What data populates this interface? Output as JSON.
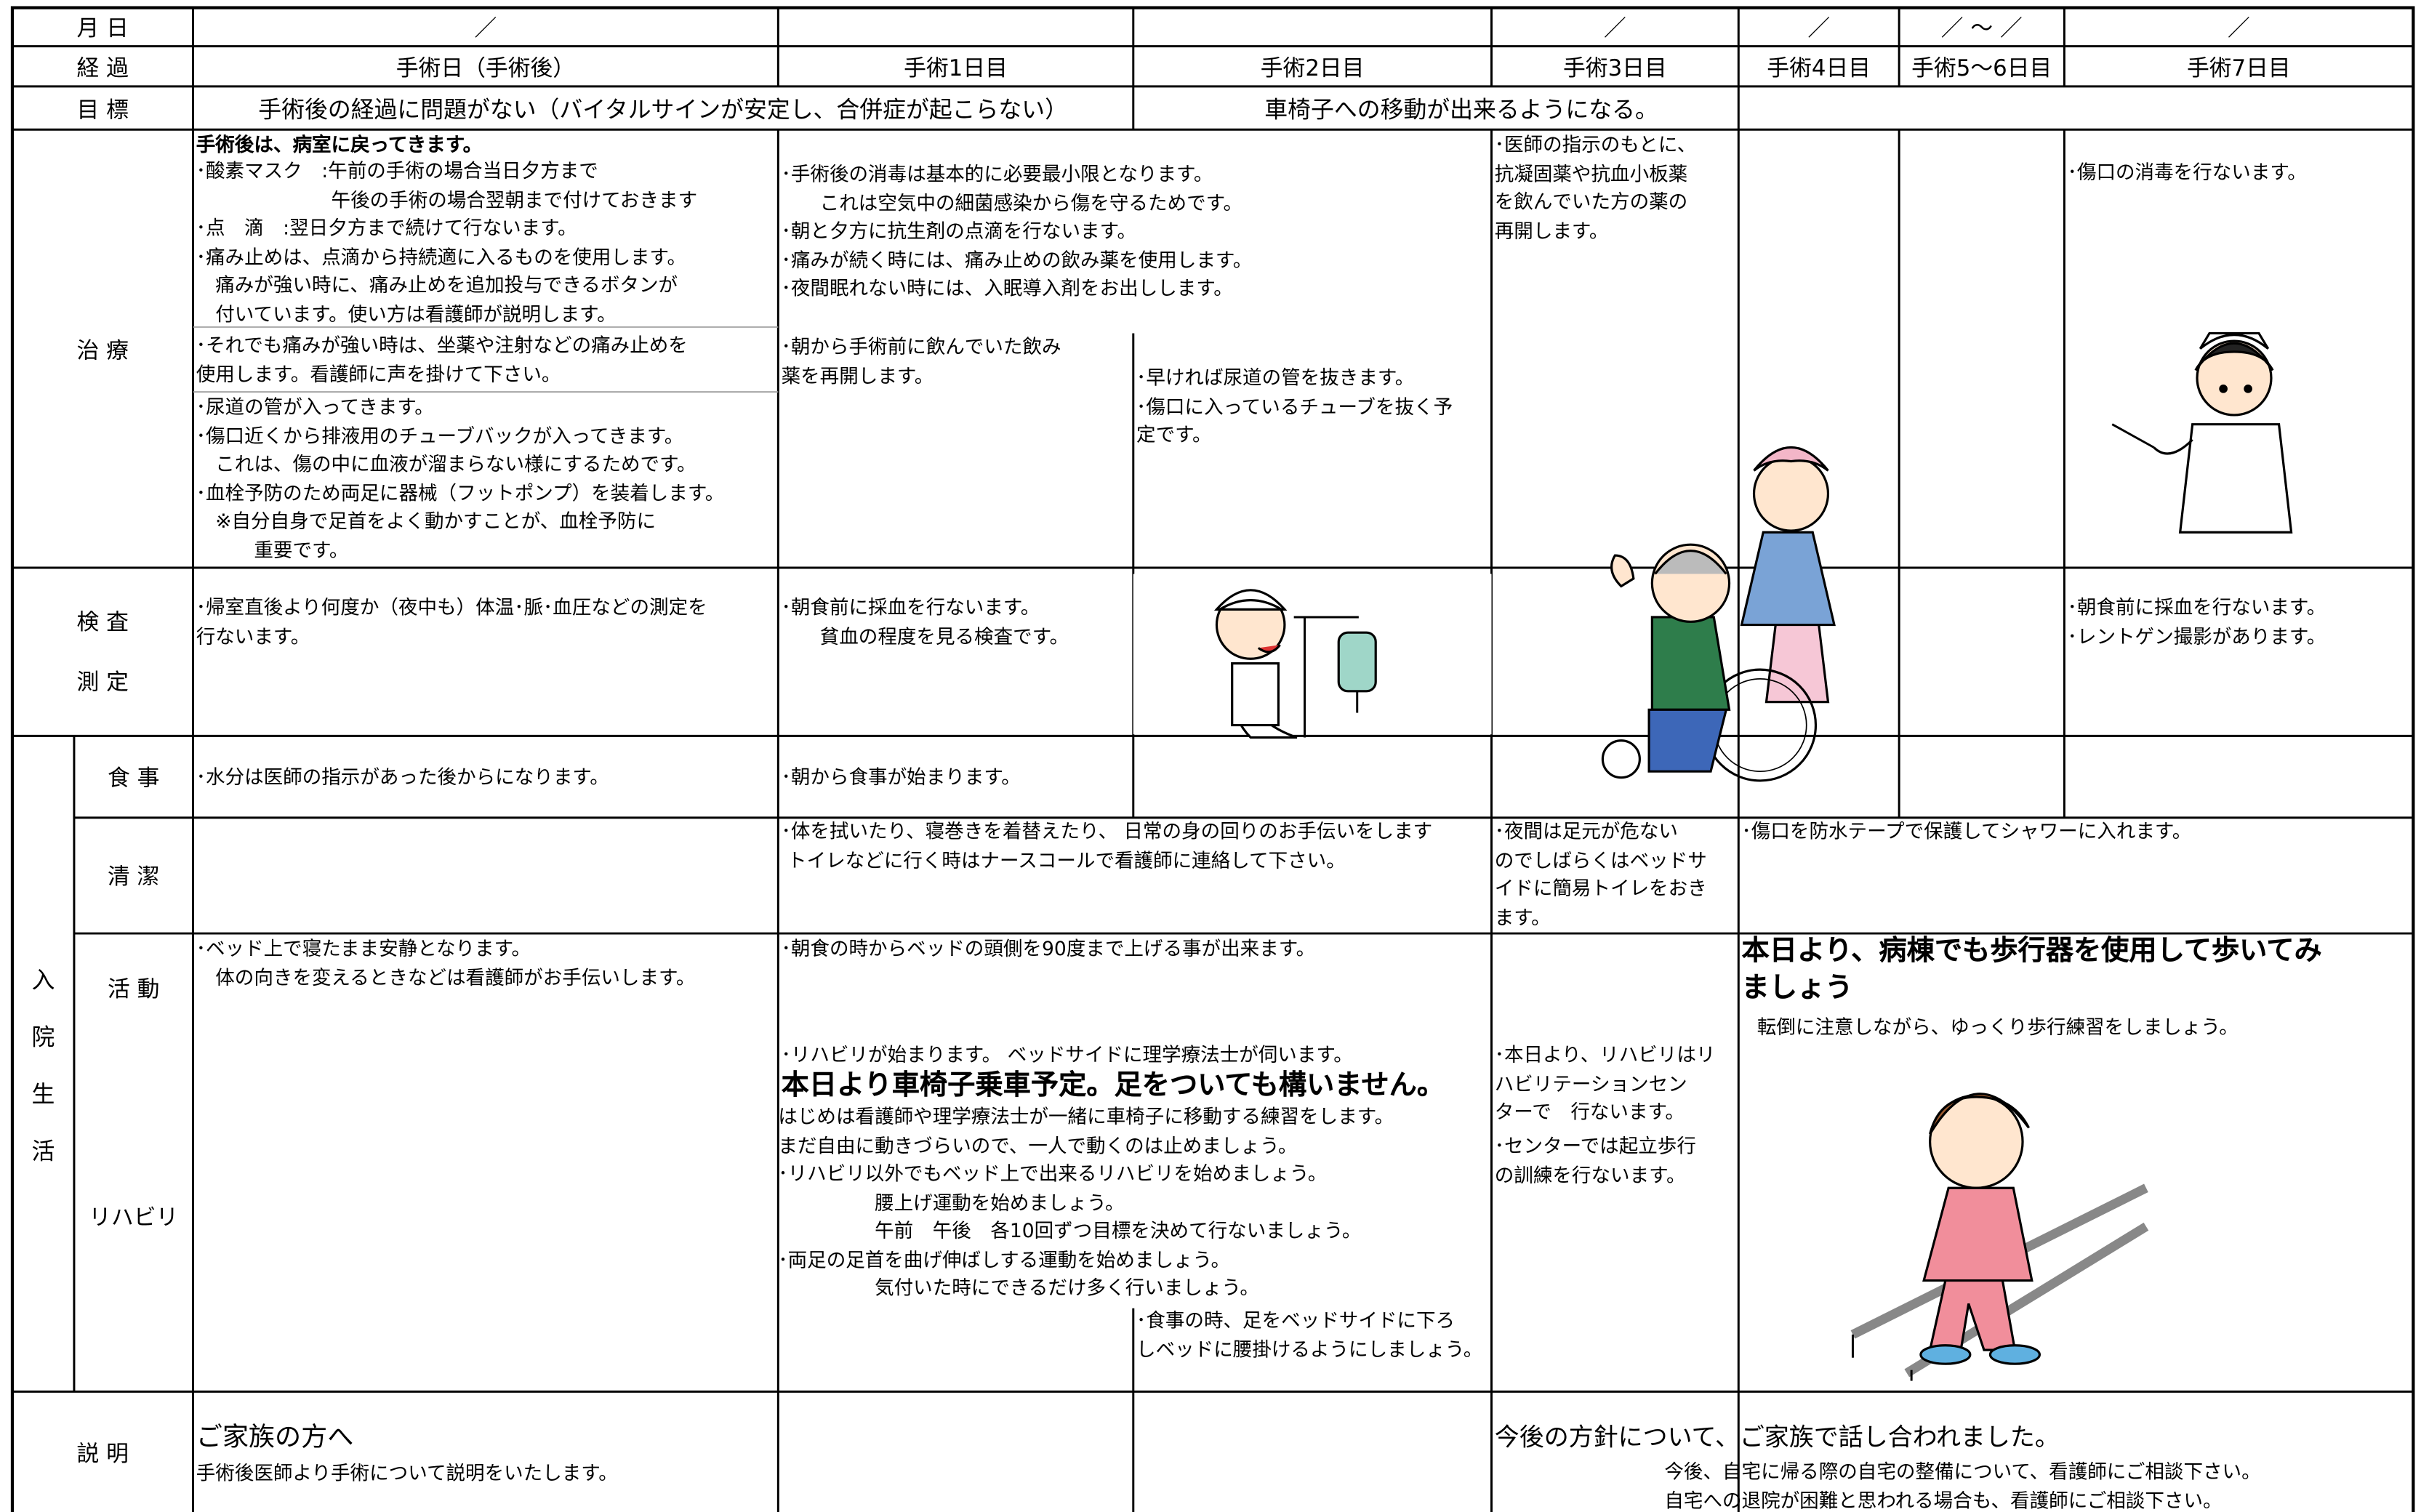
{
  "header": {
    "date_label": "月 日",
    "course_label": "経 過",
    "goal_label": "目 標",
    "dates": [
      "／",
      "／",
      "／",
      "／ ～ ／",
      "／"
    ],
    "days": [
      "手術日（手術後）",
      "手術1日目",
      "手術2日目",
      "手術3日目",
      "手術4日目",
      "手術5～6日目",
      "手術7日目"
    ],
    "goals": [
      "手術後の経過に問題がない（バイタルサインが安定し、合併症が起こらない）",
      "車椅子への移動が出来るようになる。"
    ]
  },
  "treatment": {
    "label": "治 療",
    "heading": "手術後は、病室に戻ってきます。",
    "texts": [
      "･酸素マスク　:午前の手術の場合当日夕方まで\n　　　　　　　午後の手術の場合翌朝まで付けておきます\n･点　滴　:翌日夕方まで続けて行ないます。\n･痛み止めは、点滴から持続適に入るものを使用します。\n　痛みが強い時に、痛み止めを追加投与できるボタンが\n　付いています。使い方は看護師が説明します。",
      "･それでも痛みが強い時は、坐薬や注射などの痛み止めを\n使用します。看護師に声を掛けて下さい。",
      "･尿道の管が入ってきます。\n･傷口近くから排液用のチューブバックが入ってきます。\n　これは、傷の中に血液が溜まらない様にするためです。\n･血栓予防のため両足に器械（フットポンプ）を装着します。\n　※自分自身で足首をよく動かすことが、血栓予防に\n　　　重要です。",
      "･手術後の消毒は基本的に必要最小限となります。\n　　これは空気中の細菌感染から傷を守るためです。\n･朝と夕方に抗生剤の点滴を行ないます。\n･痛みが続く時には、痛み止めの飲み薬を使用します。\n･夜間眠れない時には、入眠導入剤をお出しします。",
      "･朝から手術前に飲んでいた飲み\n薬を再開します。",
      "･早ければ尿道の管を抜きます。\n･傷口に入っているチューブを抜く予\n定です。",
      "･医師の指示のもとに、\n抗凝固薬や抗血小板薬\nを飲んでいた方の薬の\n再開します。",
      "･傷口の消毒を行ないます。"
    ]
  },
  "exam": {
    "labels": [
      "検 査",
      "測 定"
    ],
    "texts": [
      "･帰室直後より何度か（夜中も）体温･脈･血圧などの測定を\n行ないます。",
      "･朝食前に採血を行ないます。\n　　貧血の程度を見る検査です。",
      "･朝食前に採血を行ないます。\n･レントゲン撮影があります。"
    ]
  },
  "stay": {
    "label": "入院生活",
    "meal": {
      "label": "食 事",
      "texts": [
        "･水分は医師の指示があった後からになります。",
        "･朝から食事が始まります。"
      ]
    },
    "hygiene": {
      "label": "清 潔",
      "texts": [
        "･体を拭いたり、寝巻きを着替えたり、 日常の身の回りのお手伝いをします\n トイレなどに行く時はナースコールで看護師に連絡して下さい。",
        "･夜間は足元が危ない\nのでしばらくはベッドサ\nイドに簡易トイレをおき\nます。",
        "･傷口を防水テープで保護してシャワーに入れます。"
      ]
    },
    "activity": {
      "label": "活 動",
      "texts": [
        "･ベッド上で寝たまま安静となります。\n　体の向きを変えるときなどは看護師がお手伝いします。",
        "･朝食の時からベッドの頭側を90度まで上げる事が出来ます。",
        "･リハビリが始まります。 ベッドサイドに理学療法士が伺います。",
        "本日より車椅子乗車予定。足をついても構いません。",
        "はじめは看護師や理学療法士が一緒に車椅子に移動する練習をします。\nまだ自由に動きづらいので、一人で動くのは止めましょう。\n･リハビリ以外でもベッド上で出来るリハビリを始めましょう。\n　　　　　腰上げ運動を始めましょう。\n　　　　　午前　午後　各10回ずつ目標を決めて行ないましょう。\n･両足の足首を曲げ伸ばしする運動を始めましょう。\n　　　　　気付いた時にできるだけ多く行いましょう。",
        "･食事の時、足をベッドサイドに下ろ\nしベッドに腰掛けるようにしましょう。",
        "･本日より、リハビリはリ\nハビリテーションセン\nターで　行ないます。",
        "･センターでは起立歩行\nの訓練を行ないます。",
        "本日より、病棟でも歩行器を使用して歩いてみ\nましょう",
        "転倒に注意しながら、ゆっくり歩行練習をしましょう。"
      ]
    },
    "rehab": {
      "label": "リハビリ"
    }
  },
  "explanation": {
    "label": "説 明",
    "texts": [
      "ご家族の方へ",
      "手術後医師より手術について説明をいたします。",
      "今後の方針について、ご家族で話し合われました。",
      "今後、自宅に帰る際の自宅の整備について、看護師にご相談下さい。\n自宅への退院が困難と思われる場合も、看護師にご相談下さい。"
    ]
  }
}
